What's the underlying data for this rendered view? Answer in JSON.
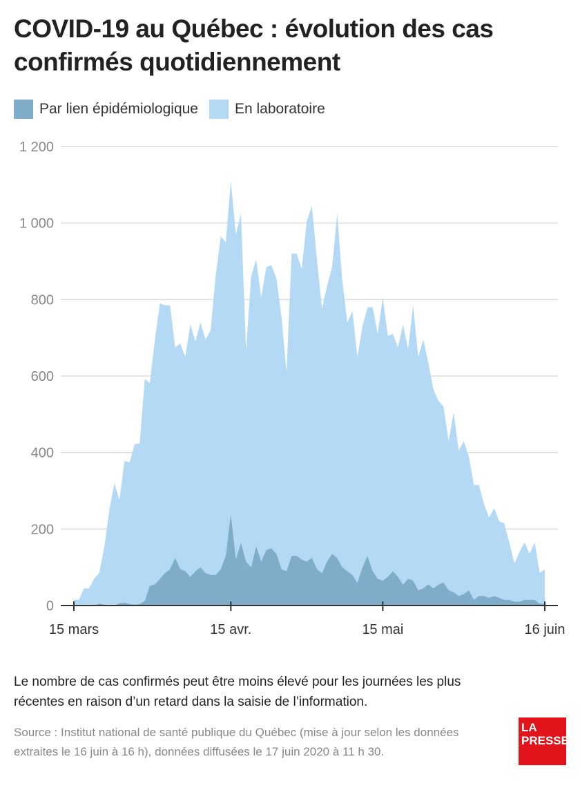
{
  "title": "COVID-19 au Québec : évolution des cas confirmés quotidiennement",
  "legend": [
    {
      "label": "Par lien épidémiologique",
      "color": "#7fadc9"
    },
    {
      "label": "En laboratoire",
      "color": "#b3d9f5"
    }
  ],
  "note": "Le nombre de cas confirmés peut être moins élevé pour les journées les plus récentes en raison d’un retard dans la saisie de l’information.",
  "source": "Source : Institut national de santé publique du Québec (mise à jour selon les données extraites le 16 juin à 16 h), données diffusées le 17 juin 2020 à 11 h 30.",
  "logo": {
    "line1": "LA",
    "line2": "PRESSE",
    "color": "#e1141b"
  },
  "colors": {
    "grid": "#dcdcdc",
    "axis": "#333333",
    "tick_text": "#888888",
    "xtick_text": "#333333"
  },
  "chart_data": {
    "type": "area",
    "stacked": true,
    "ylim": [
      0,
      1200
    ],
    "yticks": [
      0,
      200,
      400,
      600,
      800,
      1000,
      1200
    ],
    "ytick_labels": [
      "0",
      "200",
      "400",
      "600",
      "800",
      "1 000",
      "1 200"
    ],
    "x_start": "15 mars",
    "x_end": "16 juin",
    "xticks": [
      {
        "day": 0,
        "label": "15 mars"
      },
      {
        "day": 31,
        "label": "15 avr."
      },
      {
        "day": 61,
        "label": "15 mai"
      },
      {
        "day": 93,
        "label": "16 juin"
      }
    ],
    "days": [
      0,
      1,
      2,
      3,
      4,
      5,
      6,
      7,
      8,
      9,
      10,
      11,
      12,
      13,
      14,
      15,
      16,
      17,
      18,
      19,
      20,
      21,
      22,
      23,
      24,
      25,
      26,
      27,
      28,
      29,
      30,
      31,
      32,
      33,
      34,
      35,
      36,
      37,
      38,
      39,
      40,
      41,
      42,
      43,
      44,
      45,
      46,
      47,
      48,
      49,
      50,
      51,
      52,
      53,
      54,
      55,
      56,
      57,
      58,
      59,
      60,
      61,
      62,
      63,
      64,
      65,
      66,
      67,
      68,
      69,
      70,
      71,
      72,
      73,
      74,
      75,
      76,
      77,
      78,
      79,
      80,
      81,
      82,
      83,
      84,
      85,
      86,
      87,
      88,
      89,
      90,
      91,
      92,
      93
    ],
    "series": [
      {
        "name": "Par lien épidémiologique",
        "color": "#7fadc9",
        "values": [
          0,
          0,
          0,
          0,
          0,
          5,
          2,
          0,
          0,
          6,
          8,
          4,
          2,
          4,
          12,
          52,
          55,
          70,
          85,
          95,
          125,
          95,
          90,
          75,
          90,
          100,
          85,
          80,
          80,
          95,
          130,
          240,
          120,
          165,
          115,
          100,
          155,
          115,
          145,
          150,
          135,
          95,
          90,
          130,
          130,
          120,
          115,
          125,
          95,
          85,
          115,
          135,
          125,
          100,
          90,
          80,
          60,
          100,
          130,
          90,
          70,
          65,
          75,
          90,
          75,
          55,
          70,
          65,
          40,
          45,
          55,
          45,
          55,
          60,
          40,
          35,
          25,
          30,
          40,
          15,
          25,
          25,
          20,
          25,
          20,
          15,
          15,
          10,
          10,
          15,
          15,
          15,
          5,
          5
        ]
      },
      {
        "name": "En laboratoire",
        "color": "#b3d9f5",
        "values": [
          15,
          15,
          45,
          45,
          70,
          80,
          150,
          250,
          320,
          270,
          370,
          370,
          420,
          420,
          580,
          530,
          640,
          720,
          700,
          690,
          550,
          590,
          560,
          660,
          600,
          640,
          610,
          640,
          780,
          870,
          820,
          870,
          850,
          860,
          550,
          760,
          750,
          690,
          740,
          740,
          720,
          660,
          520,
          790,
          790,
          760,
          890,
          920,
          810,
          690,
          720,
          750,
          900,
          750,
          650,
          690,
          590,
          630,
          650,
          690,
          640,
          740,
          630,
          620,
          600,
          680,
          600,
          720,
          610,
          650,
          580,
          520,
          480,
          460,
          390,
          470,
          380,
          400,
          350,
          300,
          290,
          240,
          210,
          230,
          200,
          200,
          150,
          100,
          130,
          150,
          120,
          150,
          80,
          90
        ]
      }
    ]
  }
}
